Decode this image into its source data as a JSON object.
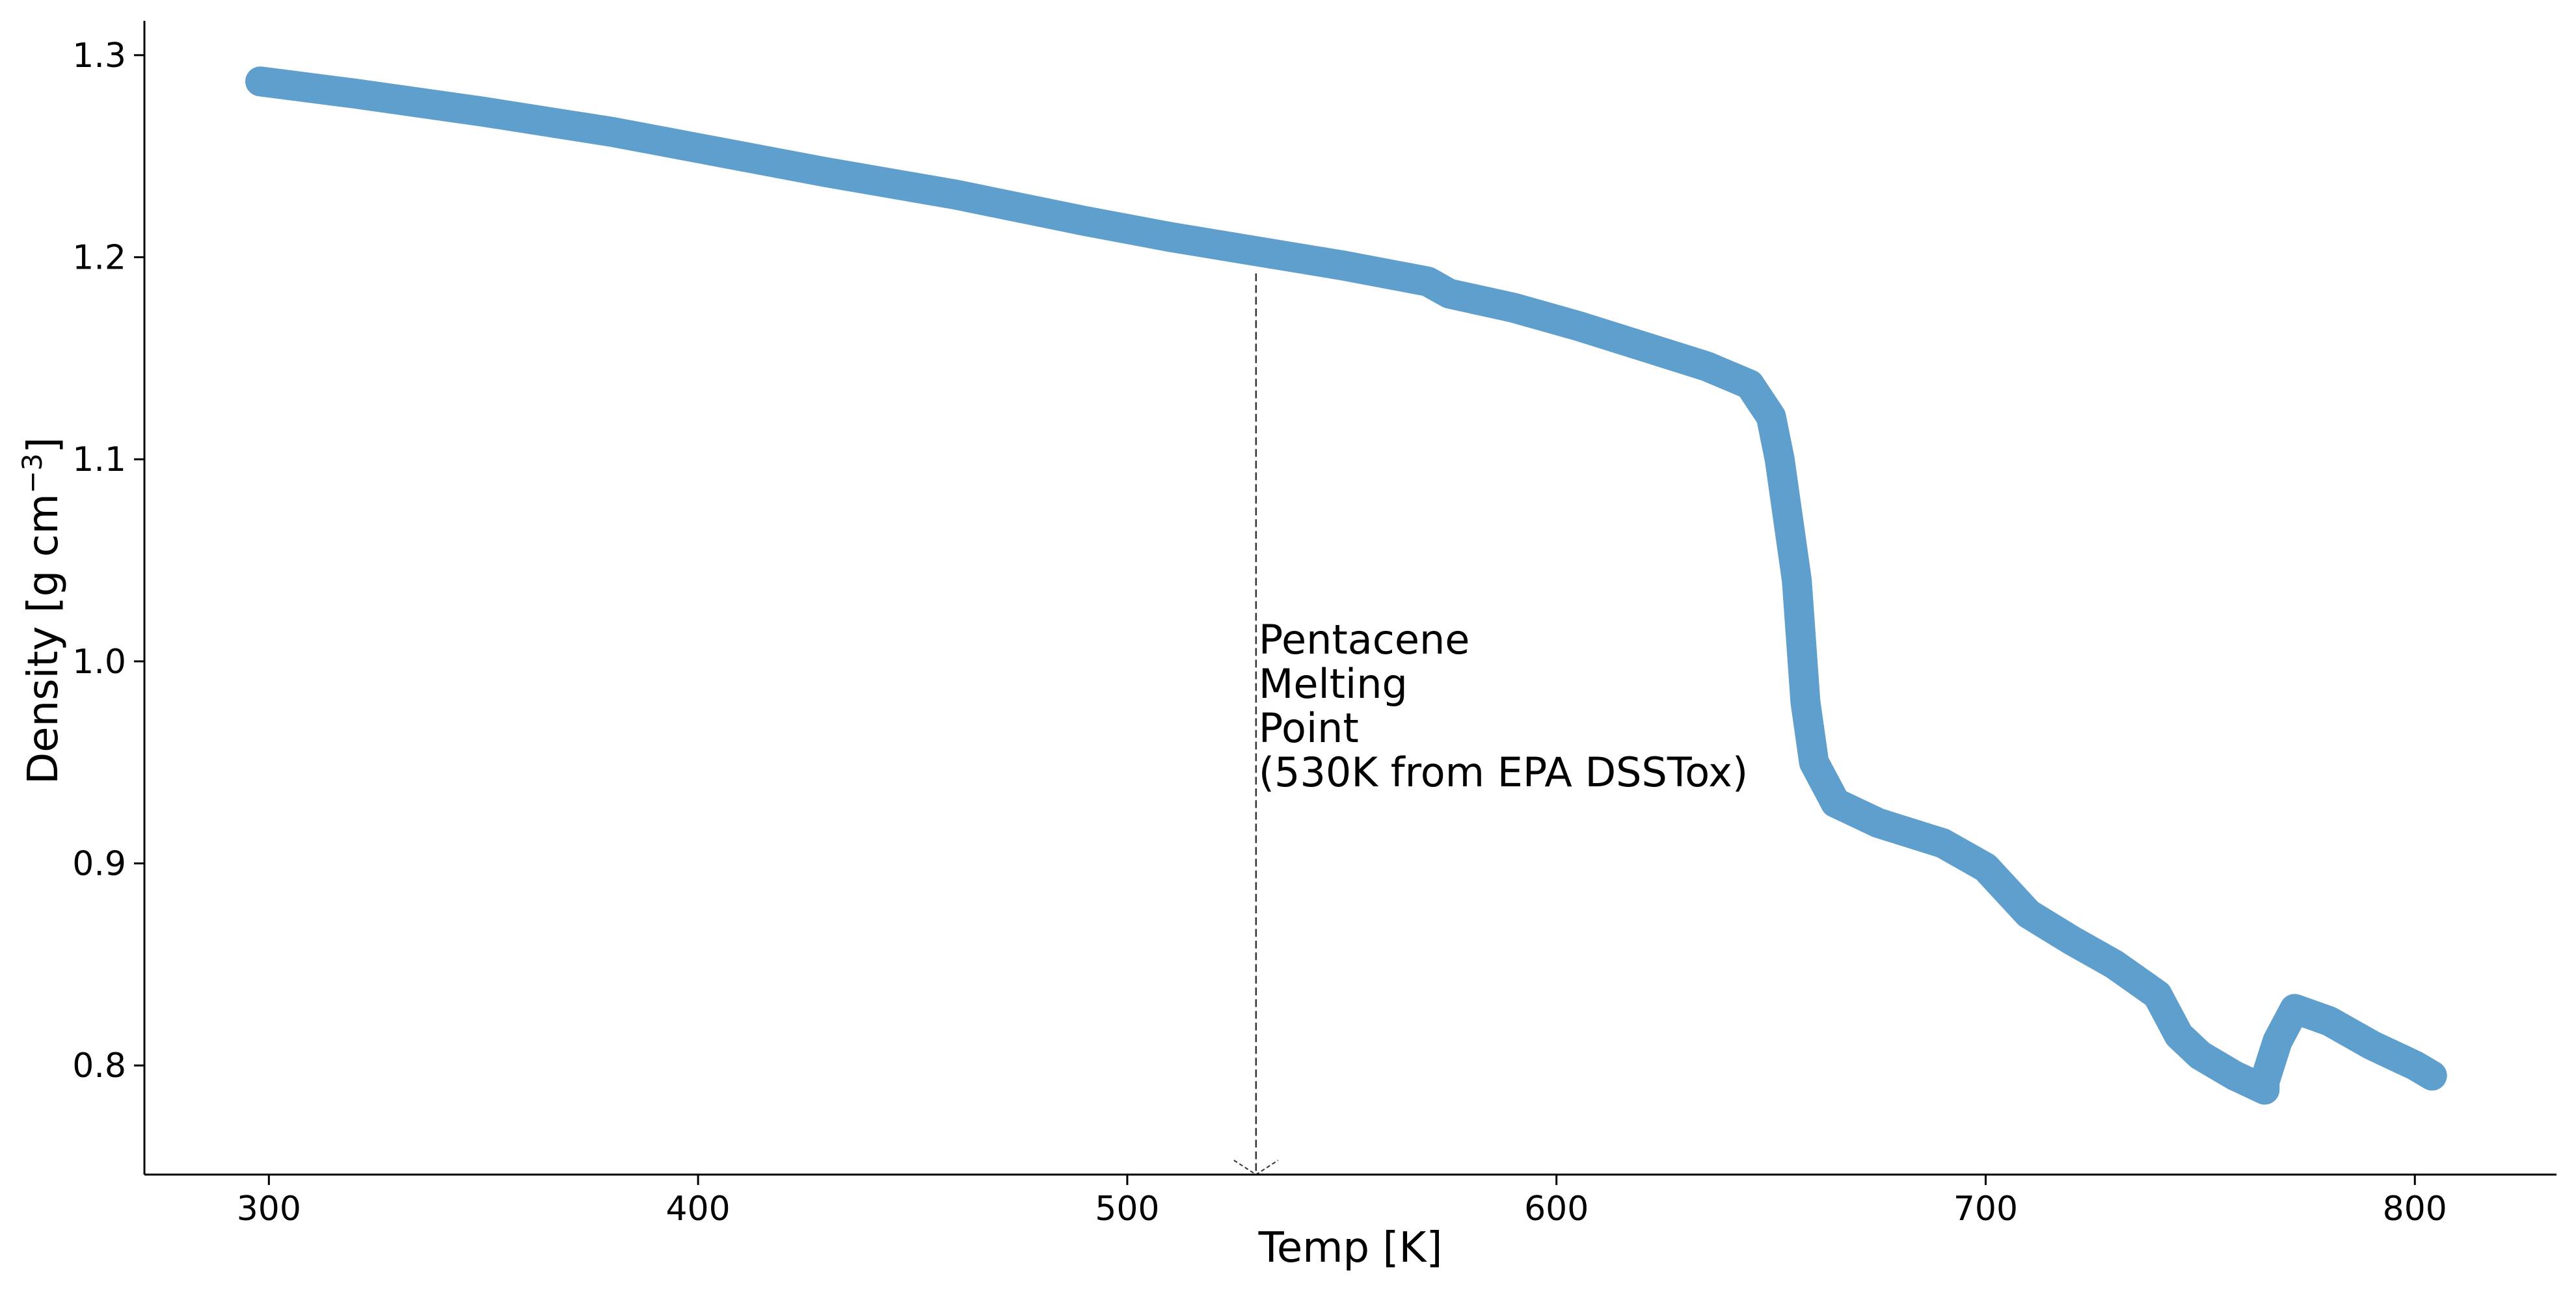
{
  "chart_data": {
    "type": "line",
    "title": "",
    "xlabel": "Temp [K]",
    "ylabel": "Density [g cm",
    "ylabel_sup": "−3",
    "ylabel_close": "]",
    "xlim": [
      271,
      833
    ],
    "ylim": [
      0.746,
      1.317
    ],
    "xticks": [
      300,
      400,
      500,
      600,
      700,
      800
    ],
    "xtick_labels": [
      "300",
      "400",
      "500",
      "600",
      "700",
      "800"
    ],
    "yticks": [
      0.8,
      0.9,
      1.0,
      1.1,
      1.2,
      1.3
    ],
    "ytick_labels": [
      "0.8",
      "0.9",
      "1.0",
      "1.1",
      "1.2",
      "1.3"
    ],
    "grid": false,
    "series": [
      {
        "color": "#5f9fcd",
        "band_halfwidth": 0.0045,
        "x": [
          298,
          320,
          350,
          380,
          400,
          430,
          460,
          490,
          510,
          530,
          550,
          570,
          575,
          590,
          605,
          620,
          635,
          645,
          650,
          652,
          654,
          656,
          657,
          658,
          660,
          665,
          675,
          690,
          700,
          710,
          720,
          730,
          740,
          745,
          750,
          758,
          765,
          765,
          768,
          772,
          780,
          790,
          800,
          804
        ],
        "y": [
          1.287,
          1.281,
          1.272,
          1.262,
          1.254,
          1.242,
          1.231,
          1.218,
          1.21,
          1.203,
          1.196,
          1.188,
          1.182,
          1.175,
          1.166,
          1.156,
          1.146,
          1.137,
          1.121,
          1.1,
          1.07,
          1.04,
          1.01,
          0.98,
          0.95,
          0.93,
          0.92,
          0.91,
          0.898,
          0.875,
          0.862,
          0.85,
          0.835,
          0.815,
          0.805,
          0.795,
          0.788,
          0.792,
          0.812,
          0.828,
          0.822,
          0.81,
          0.8,
          0.795
        ]
      }
    ],
    "annotations": [
      {
        "x": 530,
        "y_top": 1.192,
        "lines": [
          "Pentacene",
          "Melting",
          "Point",
          "(530K from EPA DSSTox)"
        ],
        "line_style": "dashed",
        "color": "#333333"
      }
    ]
  }
}
